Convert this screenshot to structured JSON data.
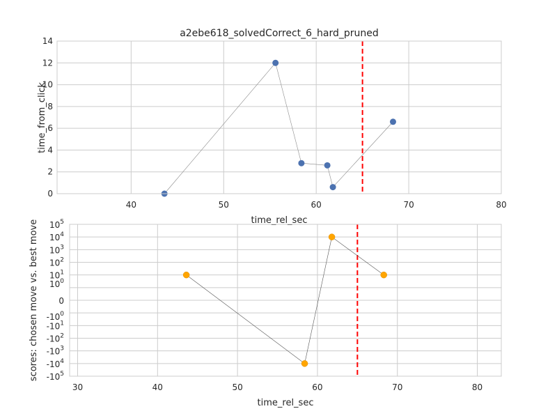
{
  "chart_data": [
    {
      "type": "scatter",
      "title": "a2ebe618_solvedCorrect_6_hard_pruned",
      "xlabel": "time_rel_sec",
      "ylabel": "time_from_click",
      "xlim": [
        32,
        80
      ],
      "ylim": [
        0,
        14
      ],
      "xticks": [
        "40",
        "50",
        "60",
        "70",
        "80"
      ],
      "yticks": [
        "0",
        "2",
        "4",
        "6",
        "8",
        "10",
        "12",
        "14"
      ],
      "grid": true,
      "series": [
        {
          "color": "#4c72b0",
          "connected": true,
          "x": [
            43.6,
            55.6,
            58.4,
            61.2,
            61.8,
            68.3
          ],
          "y": [
            0.0,
            12.0,
            2.8,
            2.6,
            0.6,
            6.6
          ]
        }
      ],
      "vline": {
        "x": 65,
        "color": "#ff0000",
        "style": "dashed"
      }
    },
    {
      "type": "scatter",
      "title": "",
      "xlabel": "time_rel_sec",
      "ylabel": "scores: chosen move vs. best move",
      "xlim": [
        29,
        83
      ],
      "yscale": "symlog",
      "ylim": [
        -100000,
        100000
      ],
      "xticks": [
        "30",
        "40",
        "50",
        "60",
        "70",
        "80"
      ],
      "yticks": [
        "10^5",
        "10^4",
        "10^3",
        "10^2",
        "10^1",
        "10^0",
        "0",
        "-10^0",
        "-10^1",
        "-10^2",
        "-10^3",
        "-10^4",
        "-10^5"
      ],
      "grid": true,
      "series": [
        {
          "color": "#ffa500",
          "connected": true,
          "x": [
            43.6,
            58.4,
            61.8,
            68.3
          ],
          "y": [
            10,
            -10000,
            10000,
            10
          ]
        }
      ],
      "vline": {
        "x": 65,
        "color": "#ff0000",
        "style": "dashed"
      }
    }
  ]
}
